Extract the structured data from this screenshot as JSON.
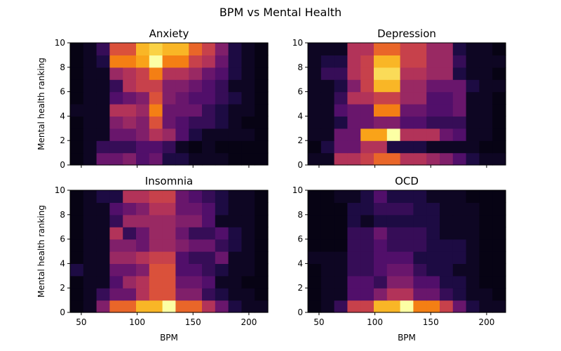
{
  "figure": {
    "suptitle": "BPM vs Mental Health"
  },
  "chart_data": [
    {
      "type": "heatmap",
      "title": "Anxiety",
      "xlabel": "",
      "ylabel": "Mental health ranking",
      "x_edges": [
        40.0,
        51.8,
        63.6,
        75.4,
        87.2,
        99.0,
        110.8,
        122.6,
        134.4,
        146.2,
        158.0,
        169.8,
        181.6,
        193.4,
        205.2,
        217.0
      ],
      "y_edges": [
        0,
        1,
        2,
        3,
        4,
        5,
        6,
        7,
        8,
        9,
        10
      ],
      "z": [
        [
          0.03,
          0.06,
          0.3,
          0.3,
          0.36,
          0.24,
          0.3,
          0.12,
          0.12,
          0.06,
          0.06,
          0.06,
          0.03,
          0.03,
          0.03
        ],
        [
          0.03,
          0.06,
          0.18,
          0.18,
          0.18,
          0.24,
          0.24,
          0.18,
          0.06,
          0.03,
          0.06,
          0.03,
          0.03,
          0.03,
          0.03
        ],
        [
          0.03,
          0.06,
          0.06,
          0.3,
          0.3,
          0.36,
          0.48,
          0.42,
          0.24,
          0.12,
          0.06,
          0.06,
          0.06,
          0.06,
          0.03
        ],
        [
          0.03,
          0.06,
          0.06,
          0.36,
          0.42,
          0.36,
          0.6,
          0.3,
          0.24,
          0.18,
          0.18,
          0.12,
          0.06,
          0.03,
          0.03
        ],
        [
          0.06,
          0.06,
          0.06,
          0.48,
          0.48,
          0.42,
          0.72,
          0.3,
          0.3,
          0.3,
          0.18,
          0.12,
          0.06,
          0.06,
          0.03
        ],
        [
          0.03,
          0.06,
          0.06,
          0.24,
          0.3,
          0.36,
          0.6,
          0.36,
          0.3,
          0.24,
          0.24,
          0.18,
          0.12,
          0.06,
          0.03
        ],
        [
          0.03,
          0.06,
          0.06,
          0.18,
          0.48,
          0.54,
          0.54,
          0.36,
          0.36,
          0.3,
          0.24,
          0.18,
          0.06,
          0.06,
          0.03
        ],
        [
          0.03,
          0.06,
          0.06,
          0.42,
          0.48,
          0.54,
          0.72,
          0.48,
          0.48,
          0.42,
          0.3,
          0.24,
          0.12,
          0.06,
          0.03
        ],
        [
          0.03,
          0.06,
          0.12,
          0.72,
          0.72,
          0.8,
          1.0,
          0.72,
          0.72,
          0.54,
          0.48,
          0.3,
          0.12,
          0.06,
          0.03
        ],
        [
          0.03,
          0.06,
          0.18,
          0.6,
          0.6,
          0.84,
          0.9,
          0.84,
          0.84,
          0.66,
          0.54,
          0.36,
          0.12,
          0.06,
          0.03
        ]
      ]
    },
    {
      "type": "heatmap",
      "title": "Depression",
      "xlabel": "",
      "ylabel": "",
      "x_edges": [
        40.0,
        51.8,
        63.6,
        75.4,
        87.2,
        99.0,
        110.8,
        122.6,
        134.4,
        146.2,
        158.0,
        169.8,
        181.6,
        193.4,
        205.2,
        217.0
      ],
      "y_edges": [
        0,
        1,
        2,
        3,
        4,
        5,
        6,
        7,
        8,
        9,
        10
      ],
      "z": [
        [
          0.06,
          0.06,
          0.48,
          0.48,
          0.54,
          0.66,
          0.66,
          0.48,
          0.48,
          0.42,
          0.36,
          0.24,
          0.12,
          0.06,
          0.06
        ],
        [
          0.03,
          0.12,
          0.3,
          0.3,
          0.48,
          0.48,
          0.12,
          0.12,
          0.12,
          0.06,
          0.06,
          0.06,
          0.06,
          0.03,
          0.03
        ],
        [
          0.06,
          0.06,
          0.3,
          0.3,
          0.8,
          0.8,
          1.0,
          0.48,
          0.48,
          0.48,
          0.3,
          0.24,
          0.06,
          0.06,
          0.03
        ],
        [
          0.06,
          0.06,
          0.12,
          0.3,
          0.3,
          0.36,
          0.36,
          0.24,
          0.24,
          0.18,
          0.18,
          0.18,
          0.06,
          0.06,
          0.03
        ],
        [
          0.06,
          0.06,
          0.24,
          0.3,
          0.3,
          0.72,
          0.72,
          0.3,
          0.3,
          0.24,
          0.24,
          0.3,
          0.06,
          0.06,
          0.03
        ],
        [
          0.06,
          0.06,
          0.18,
          0.48,
          0.48,
          0.54,
          0.54,
          0.42,
          0.42,
          0.24,
          0.24,
          0.3,
          0.06,
          0.06,
          0.03
        ],
        [
          0.06,
          0.06,
          0.12,
          0.36,
          0.54,
          0.84,
          0.84,
          0.42,
          0.42,
          0.3,
          0.3,
          0.3,
          0.12,
          0.06,
          0.06
        ],
        [
          0.06,
          0.18,
          0.18,
          0.48,
          0.54,
          0.92,
          0.92,
          0.48,
          0.48,
          0.42,
          0.42,
          0.12,
          0.06,
          0.06,
          0.03
        ],
        [
          0.06,
          0.12,
          0.12,
          0.48,
          0.54,
          0.84,
          0.84,
          0.54,
          0.54,
          0.42,
          0.42,
          0.18,
          0.06,
          0.06,
          0.06
        ],
        [
          0.06,
          0.06,
          0.06,
          0.48,
          0.48,
          0.66,
          0.66,
          0.54,
          0.54,
          0.42,
          0.42,
          0.12,
          0.06,
          0.06,
          0.03
        ]
      ]
    },
    {
      "type": "heatmap",
      "title": "Insomnia",
      "xlabel": "BPM",
      "ylabel": "Mental health ranking",
      "x_edges": [
        40.0,
        51.8,
        63.6,
        75.4,
        87.2,
        99.0,
        110.8,
        122.6,
        134.4,
        146.2,
        158.0,
        169.8,
        181.6,
        193.4,
        205.2,
        217.0
      ],
      "y_edges": [
        0,
        1,
        2,
        3,
        4,
        5,
        6,
        7,
        8,
        9,
        10
      ],
      "z": [
        [
          0.03,
          0.06,
          0.36,
          0.66,
          0.66,
          0.84,
          0.84,
          1.0,
          0.66,
          0.66,
          0.48,
          0.3,
          0.12,
          0.06,
          0.06
        ],
        [
          0.03,
          0.06,
          0.18,
          0.3,
          0.3,
          0.48,
          0.6,
          0.6,
          0.36,
          0.36,
          0.18,
          0.12,
          0.06,
          0.06,
          0.03
        ],
        [
          0.03,
          0.06,
          0.06,
          0.24,
          0.42,
          0.48,
          0.6,
          0.6,
          0.3,
          0.3,
          0.24,
          0.06,
          0.06,
          0.03,
          0.03
        ],
        [
          0.12,
          0.06,
          0.06,
          0.3,
          0.3,
          0.36,
          0.6,
          0.6,
          0.24,
          0.24,
          0.18,
          0.12,
          0.06,
          0.06,
          0.03
        ],
        [
          0.03,
          0.06,
          0.06,
          0.42,
          0.42,
          0.48,
          0.54,
          0.54,
          0.24,
          0.18,
          0.18,
          0.3,
          0.06,
          0.06,
          0.03
        ],
        [
          0.03,
          0.06,
          0.06,
          0.36,
          0.36,
          0.3,
          0.42,
          0.42,
          0.36,
          0.3,
          0.3,
          0.18,
          0.12,
          0.06,
          0.03
        ],
        [
          0.03,
          0.06,
          0.06,
          0.48,
          0.18,
          0.3,
          0.42,
          0.42,
          0.3,
          0.18,
          0.18,
          0.24,
          0.12,
          0.06,
          0.03
        ],
        [
          0.03,
          0.06,
          0.06,
          0.18,
          0.42,
          0.42,
          0.42,
          0.42,
          0.36,
          0.36,
          0.24,
          0.06,
          0.06,
          0.06,
          0.03
        ],
        [
          0.03,
          0.06,
          0.06,
          0.24,
          0.3,
          0.36,
          0.48,
          0.48,
          0.3,
          0.3,
          0.24,
          0.12,
          0.06,
          0.06,
          0.03
        ],
        [
          0.03,
          0.06,
          0.12,
          0.12,
          0.48,
          0.48,
          0.54,
          0.54,
          0.3,
          0.24,
          0.18,
          0.12,
          0.06,
          0.06,
          0.03
        ]
      ]
    },
    {
      "type": "heatmap",
      "title": "OCD",
      "xlabel": "BPM",
      "ylabel": "",
      "x_edges": [
        40.0,
        51.8,
        63.6,
        75.4,
        87.2,
        99.0,
        110.8,
        122.6,
        134.4,
        146.2,
        158.0,
        169.8,
        181.6,
        193.4,
        205.2,
        217.0
      ],
      "y_edges": [
        0,
        1,
        2,
        3,
        4,
        5,
        6,
        7,
        8,
        9,
        10
      ],
      "z": [
        [
          0.03,
          0.06,
          0.18,
          0.54,
          0.54,
          0.84,
          0.84,
          1.0,
          0.72,
          0.72,
          0.54,
          0.3,
          0.12,
          0.06,
          0.06
        ],
        [
          0.03,
          0.06,
          0.06,
          0.24,
          0.24,
          0.36,
          0.48,
          0.48,
          0.3,
          0.3,
          0.18,
          0.12,
          0.06,
          0.06,
          0.03
        ],
        [
          0.03,
          0.06,
          0.06,
          0.24,
          0.24,
          0.18,
          0.36,
          0.36,
          0.24,
          0.24,
          0.12,
          0.12,
          0.06,
          0.03,
          0.03
        ],
        [
          0.03,
          0.06,
          0.06,
          0.18,
          0.18,
          0.24,
          0.3,
          0.3,
          0.18,
          0.12,
          0.12,
          0.06,
          0.06,
          0.03,
          0.03
        ],
        [
          0.06,
          0.06,
          0.06,
          0.18,
          0.18,
          0.24,
          0.24,
          0.24,
          0.12,
          0.12,
          0.12,
          0.12,
          0.06,
          0.03,
          0.03
        ],
        [
          0.03,
          0.03,
          0.03,
          0.18,
          0.18,
          0.24,
          0.18,
          0.18,
          0.18,
          0.12,
          0.12,
          0.12,
          0.06,
          0.03,
          0.03
        ],
        [
          0.03,
          0.03,
          0.03,
          0.18,
          0.18,
          0.3,
          0.18,
          0.18,
          0.18,
          0.12,
          0.06,
          0.06,
          0.06,
          0.03,
          0.03
        ],
        [
          0.03,
          0.03,
          0.03,
          0.12,
          0.06,
          0.12,
          0.12,
          0.12,
          0.12,
          0.12,
          0.06,
          0.06,
          0.06,
          0.03,
          0.03
        ],
        [
          0.03,
          0.03,
          0.03,
          0.12,
          0.12,
          0.18,
          0.18,
          0.18,
          0.12,
          0.12,
          0.06,
          0.06,
          0.06,
          0.03,
          0.03
        ],
        [
          0.03,
          0.03,
          0.06,
          0.06,
          0.12,
          0.24,
          0.12,
          0.12,
          0.12,
          0.06,
          0.06,
          0.06,
          0.03,
          0.03,
          0.03
        ]
      ]
    }
  ]
}
